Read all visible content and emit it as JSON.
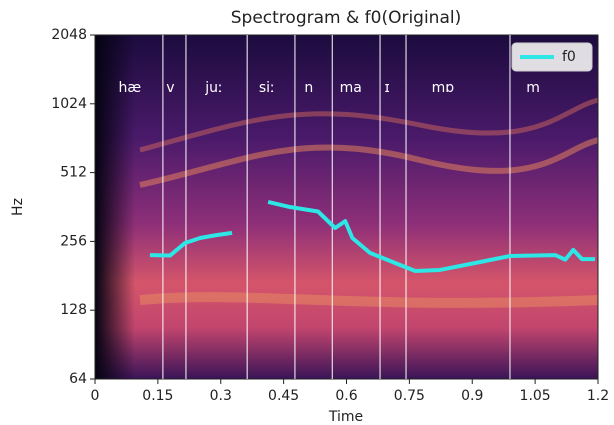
{
  "chart_data": {
    "type": "line",
    "title": "Spectrogram & f0(Original)",
    "x_label": "Time",
    "y_label": "Hz",
    "xlim": [
      0,
      1.2
    ],
    "xticks": [
      0,
      0.15,
      0.3,
      0.45,
      0.6,
      0.75,
      0.9,
      1.05,
      1.2
    ],
    "ylim": [
      64,
      2048
    ],
    "yticks": [
      64,
      128,
      256,
      512,
      1024,
      2048
    ],
    "ylog": true,
    "logbase": 2,
    "legend": "upper right",
    "series": [
      {
        "name": "f0",
        "color": "#2ee6e6",
        "x": [
          0.131,
          0.179,
          0.215,
          0.251,
          0.286,
          0.327,
          0.37,
          0.413,
          0.465,
          0.532,
          0.573,
          0.597,
          0.614,
          0.656,
          0.716,
          0.764,
          0.823,
          0.919,
          0.99,
          1.098,
          1.122,
          1.141,
          1.162,
          1.193
        ],
        "values": [
          223,
          222,
          252,
          265,
          272,
          279,
          null,
          381,
          362,
          346,
          293,
          314,
          265,
          228,
          206,
          190,
          192,
          208,
          221,
          223,
          213,
          235,
          214,
          214
        ]
      }
    ],
    "boundaries": [
      0.162,
      0.217,
      0.363,
      0.477,
      0.566,
      0.68,
      0.742,
      0.99
    ],
    "annotations": [
      {
        "text": "hæ",
        "x": 0.083
      },
      {
        "text": "v",
        "x": 0.18
      },
      {
        "text": "juː",
        "x": 0.284
      },
      {
        "text": "siː",
        "x": 0.41
      },
      {
        "text": "n",
        "x": 0.51
      },
      {
        "text": "ma",
        "x": 0.61
      },
      {
        "text": "ɪ",
        "x": 0.697
      },
      {
        "text": "mɒ",
        "x": 0.83
      },
      {
        "text": "m",
        "x": 1.045
      }
    ]
  }
}
